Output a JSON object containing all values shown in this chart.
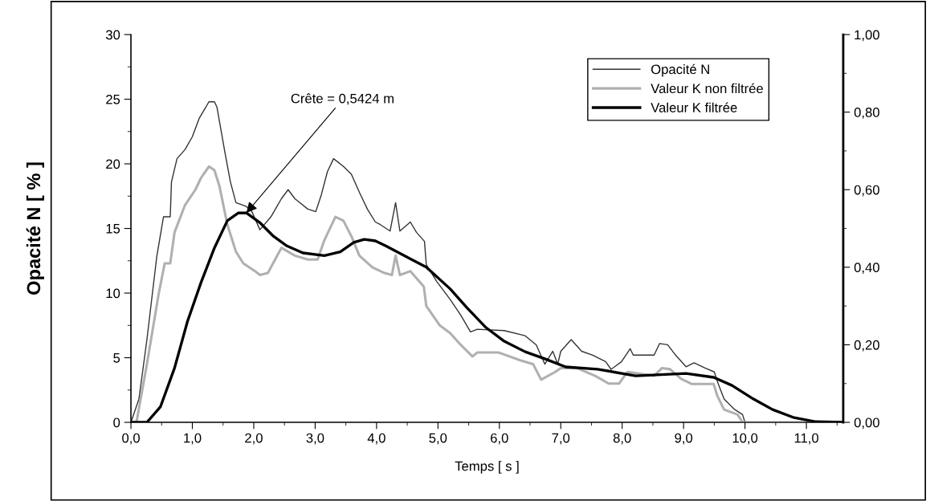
{
  "chart_data": {
    "type": "line",
    "xlabel": "Temps [ s ]",
    "ylabel": "Opacité N [ % ]",
    "xlim": [
      0,
      11.6
    ],
    "xticks": [
      {
        "value": 0,
        "label": "0,0"
      },
      {
        "value": 1,
        "label": "1,0"
      },
      {
        "value": 2,
        "label": "2,0"
      },
      {
        "value": 3,
        "label": "3,0"
      },
      {
        "value": 4,
        "label": "4,0"
      },
      {
        "value": 5,
        "label": "5,0"
      },
      {
        "value": 6,
        "label": "6,0"
      },
      {
        "value": 7,
        "label": "7,0"
      },
      {
        "value": 8,
        "label": "8,0"
      },
      {
        "value": 9,
        "label": "9,0"
      },
      {
        "value": 10,
        "label": "10,0"
      },
      {
        "value": 11,
        "label": "11,0"
      }
    ],
    "ylim": [
      0,
      30
    ],
    "yticks": [
      0,
      5,
      10,
      15,
      20,
      25,
      30
    ],
    "y2lim": [
      0,
      1
    ],
    "y2ticks": [
      {
        "value": 0,
        "label": "0,00"
      },
      {
        "value": 0.2,
        "label": "0,20"
      },
      {
        "value": 0.4,
        "label": "0,40"
      },
      {
        "value": 0.6,
        "label": "0,60"
      },
      {
        "value": 0.8,
        "label": "0,80"
      },
      {
        "value": 1,
        "label": "1,00"
      }
    ],
    "grid": false,
    "legend": "top right",
    "annotations": [
      {
        "text": "Crête = 0,5424 m",
        "x": 1.88,
        "y": 16.2
      }
    ],
    "series": [
      {
        "name": "Opacité N",
        "color": "#333333",
        "x": [
          0,
          0.13,
          0.26,
          0.42,
          0.53,
          0.64,
          0.66,
          0.75,
          0.88,
          1.0,
          1.11,
          1.27,
          1.36,
          1.4,
          1.53,
          1.62,
          1.71,
          1.88,
          1.97,
          2.1,
          2.28,
          2.45,
          2.56,
          2.67,
          2.88,
          3.01,
          3.1,
          3.2,
          3.3,
          3.46,
          3.59,
          3.72,
          3.85,
          3.98,
          4.06,
          4.22,
          4.31,
          4.38,
          4.55,
          4.65,
          4.78,
          4.81,
          4.98,
          5.2,
          5.37,
          5.53,
          5.64,
          6.08,
          6.42,
          6.6,
          6.74,
          6.87,
          6.95,
          7.0,
          7.17,
          7.34,
          7.52,
          7.73,
          7.82,
          7.99,
          8.13,
          8.18,
          8.52,
          8.61,
          8.74,
          8.87,
          9.04,
          9.17,
          9.35,
          9.5,
          9.57,
          9.66,
          9.83,
          9.96,
          10.0
        ],
        "values": [
          0,
          1.8,
          6.4,
          12.8,
          15.9,
          15.9,
          18.6,
          20.4,
          21.1,
          22.1,
          23.5,
          24.8,
          24.8,
          24.4,
          20.9,
          18.6,
          17.0,
          16.7,
          16.3,
          14.9,
          15.9,
          17.3,
          18.0,
          17.3,
          16.5,
          16.3,
          17.6,
          19.4,
          20.4,
          19.8,
          19.2,
          17.8,
          16.5,
          15.5,
          15.3,
          14.8,
          17.0,
          14.8,
          15.5,
          14.7,
          14.0,
          12.2,
          10.9,
          9.5,
          8.3,
          7.0,
          7.2,
          7.1,
          6.7,
          6.0,
          4.5,
          5.5,
          4.5,
          5.5,
          6.4,
          5.5,
          5.2,
          4.7,
          4.1,
          4.7,
          5.7,
          5.2,
          5.2,
          6.1,
          6.0,
          5.2,
          4.3,
          4.6,
          4.2,
          3.9,
          2.9,
          1.8,
          1.0,
          0.6,
          0
        ]
      },
      {
        "name": "Valeur K non filtrée",
        "color": "#b0b0b0",
        "axis": "y2",
        "x": [
          0,
          0.09,
          0.26,
          0.45,
          0.55,
          0.64,
          0.71,
          0.88,
          1.05,
          1.14,
          1.27,
          1.36,
          1.44,
          1.57,
          1.71,
          1.83,
          2.02,
          2.1,
          2.23,
          2.45,
          2.67,
          2.88,
          3.04,
          3.15,
          3.33,
          3.46,
          3.59,
          3.72,
          3.93,
          4.13,
          4.25,
          4.31,
          4.38,
          4.55,
          4.77,
          4.81,
          5.03,
          5.2,
          5.37,
          5.56,
          5.64,
          5.99,
          6.34,
          6.55,
          6.68,
          6.91,
          7.0,
          7.26,
          7.56,
          7.78,
          7.95,
          8.04,
          8.09,
          8.52,
          8.65,
          8.78,
          8.96,
          9.13,
          9.49,
          9.55,
          9.66,
          9.88,
          9.96,
          11.6
        ],
        "values": [
          0,
          0,
          0.15,
          0.33,
          0.41,
          0.41,
          0.49,
          0.56,
          0.6,
          0.63,
          0.66,
          0.65,
          0.61,
          0.51,
          0.44,
          0.41,
          0.39,
          0.38,
          0.385,
          0.45,
          0.43,
          0.42,
          0.42,
          0.47,
          0.53,
          0.52,
          0.48,
          0.43,
          0.4,
          0.385,
          0.38,
          0.43,
          0.38,
          0.39,
          0.35,
          0.3,
          0.25,
          0.23,
          0.2,
          0.17,
          0.18,
          0.18,
          0.16,
          0.15,
          0.11,
          0.13,
          0.14,
          0.14,
          0.12,
          0.1,
          0.1,
          0.12,
          0.13,
          0.12,
          0.14,
          0.137,
          0.112,
          0.099,
          0.099,
          0.068,
          0.033,
          0.02,
          0,
          0
        ]
      },
      {
        "name": "Valeur K filtrée",
        "color": "#000000",
        "axis": "y2",
        "x": [
          0,
          0.26,
          0.48,
          0.71,
          0.92,
          1.14,
          1.36,
          1.57,
          1.75,
          1.88,
          2.1,
          2.32,
          2.54,
          2.8,
          3.15,
          3.41,
          3.63,
          3.8,
          3.98,
          4.15,
          4.33,
          4.81,
          5.2,
          5.47,
          5.77,
          6.08,
          6.42,
          6.74,
          7.08,
          7.6,
          8.22,
          9.04,
          9.49,
          9.79,
          10.14,
          10.45,
          10.8,
          11.14,
          11.6
        ],
        "values": [
          0,
          0,
          0.04,
          0.14,
          0.26,
          0.36,
          0.45,
          0.52,
          0.54,
          0.54,
          0.515,
          0.48,
          0.455,
          0.437,
          0.43,
          0.44,
          0.464,
          0.472,
          0.468,
          0.455,
          0.44,
          0.4,
          0.344,
          0.296,
          0.246,
          0.209,
          0.182,
          0.164,
          0.143,
          0.137,
          0.12,
          0.126,
          0.116,
          0.095,
          0.06,
          0.033,
          0.012,
          0.002,
          0
        ]
      }
    ]
  }
}
